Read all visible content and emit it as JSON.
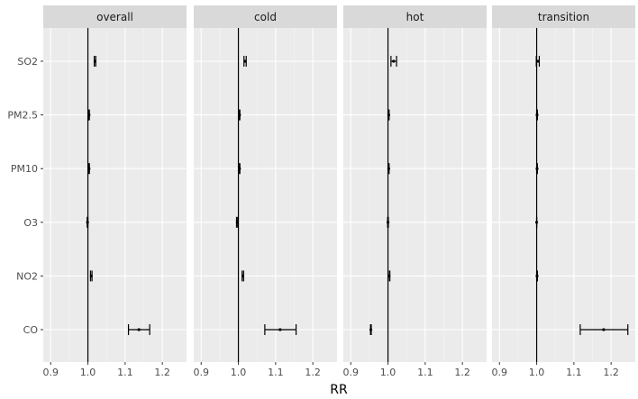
{
  "chart_data": {
    "type": "forest",
    "xlabel": "RR",
    "ylabel": "",
    "title": "",
    "categories": [
      "SO2",
      "PM2.5",
      "PM10",
      "O3",
      "NO2",
      "CO"
    ],
    "x_ticks": [
      0.9,
      1.0,
      1.1,
      1.2
    ],
    "x_tick_labels": [
      "0.9",
      "1.0",
      "1.1",
      "1.2"
    ],
    "xlim": [
      0.88,
      1.265
    ],
    "reference_line": 1.0,
    "grid": true,
    "panels": [
      {
        "name": "overall",
        "points": [
          {
            "category": "SO2",
            "rr": 1.019,
            "lower": 1.017,
            "upper": 1.021
          },
          {
            "category": "PM2.5",
            "rr": 1.003,
            "lower": 1.002,
            "upper": 1.004
          },
          {
            "category": "PM10",
            "rr": 1.003,
            "lower": 1.002,
            "upper": 1.004
          },
          {
            "category": "O3",
            "rr": 0.999,
            "lower": 0.998,
            "upper": 1.0
          },
          {
            "category": "NO2",
            "rr": 1.009,
            "lower": 1.007,
            "upper": 1.011
          },
          {
            "category": "CO",
            "rr": 1.137,
            "lower": 1.109,
            "upper": 1.166
          }
        ]
      },
      {
        "name": "cold",
        "points": [
          {
            "category": "SO2",
            "rr": 1.018,
            "lower": 1.015,
            "upper": 1.021
          },
          {
            "category": "PM2.5",
            "rr": 1.003,
            "lower": 1.002,
            "upper": 1.004
          },
          {
            "category": "PM10",
            "rr": 1.003,
            "lower": 1.002,
            "upper": 1.004
          },
          {
            "category": "O3",
            "rr": 0.997,
            "lower": 0.995,
            "upper": 0.998
          },
          {
            "category": "NO2",
            "rr": 1.012,
            "lower": 1.01,
            "upper": 1.014
          },
          {
            "category": "CO",
            "rr": 1.112,
            "lower": 1.071,
            "upper": 1.155
          }
        ]
      },
      {
        "name": "hot",
        "points": [
          {
            "category": "SO2",
            "rr": 1.015,
            "lower": 1.008,
            "upper": 1.023
          },
          {
            "category": "PM2.5",
            "rr": 1.002,
            "lower": 1.001,
            "upper": 1.003
          },
          {
            "category": "PM10",
            "rr": 1.002,
            "lower": 1.001,
            "upper": 1.003
          },
          {
            "category": "O3",
            "rr": 1.0,
            "lower": 0.999,
            "upper": 1.001
          },
          {
            "category": "NO2",
            "rr": 1.003,
            "lower": 1.001,
            "upper": 1.005
          },
          {
            "category": "CO",
            "rr": 0.954,
            "lower": 0.953,
            "upper": 0.955
          }
        ]
      },
      {
        "name": "transition",
        "points": [
          {
            "category": "SO2",
            "rr": 1.003,
            "lower": 0.999,
            "upper": 1.007
          },
          {
            "category": "PM2.5",
            "rr": 1.001,
            "lower": 1.0,
            "upper": 1.002
          },
          {
            "category": "PM10",
            "rr": 1.001,
            "lower": 1.0,
            "upper": 1.002
          },
          {
            "category": "O3",
            "rr": 1.0,
            "lower": 1.0,
            "upper": 1.0
          },
          {
            "category": "NO2",
            "rr": 1.001,
            "lower": 1.0,
            "upper": 1.002
          },
          {
            "category": "CO",
            "rr": 1.18,
            "lower": 1.117,
            "upper": 1.245
          }
        ]
      }
    ]
  },
  "colors": {
    "panel_background": "#ebebeb",
    "grid_major": "#ffffff",
    "grid_minor": "#f5f5f5",
    "strip_background": "#d9d9d9",
    "reference_line": "#000000",
    "marks": "#000000"
  }
}
